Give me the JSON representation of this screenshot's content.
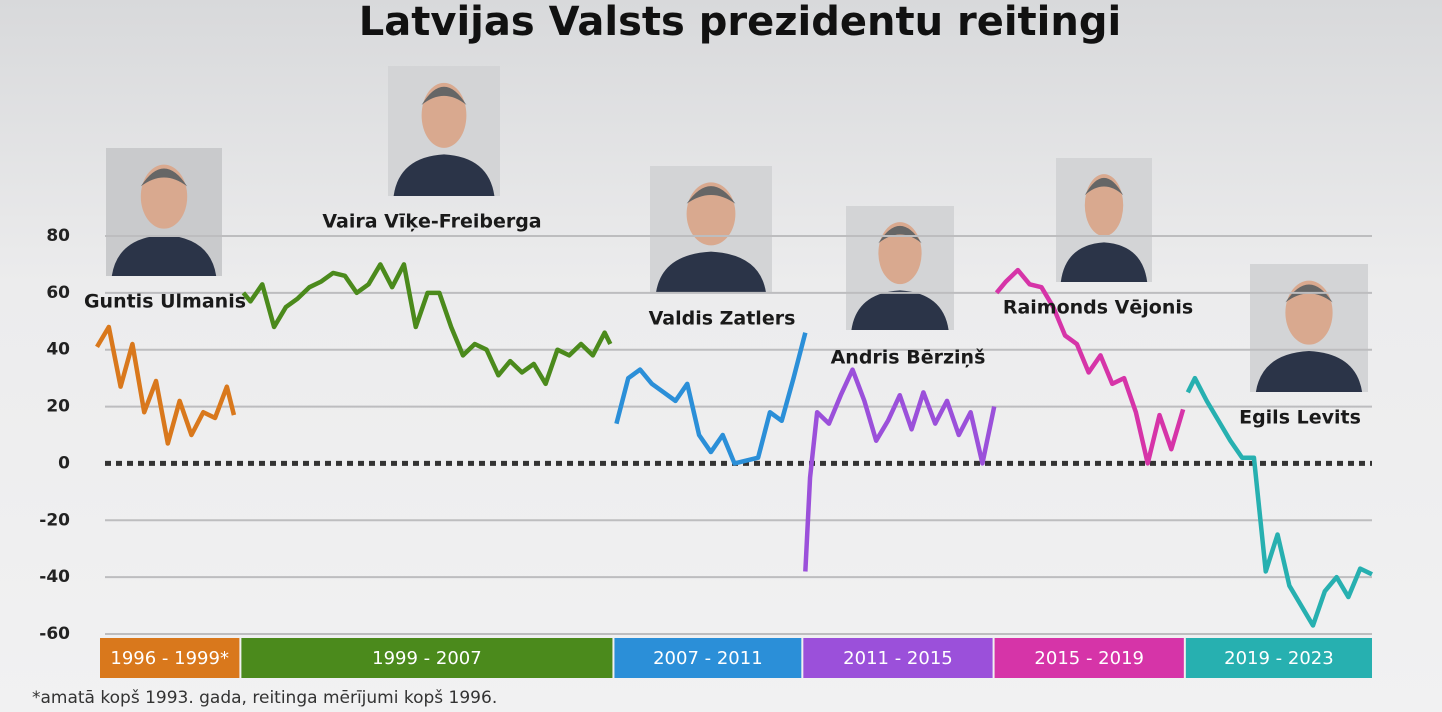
{
  "chart_data": {
    "type": "line",
    "title": "Latvijas Valsts prezidentu reitingi",
    "xlim": [
      1996,
      2023
    ],
    "ylim": [
      -60,
      80
    ],
    "yticks": [
      80,
      60,
      40,
      20,
      0,
      -20,
      -40,
      -60
    ],
    "grid": true,
    "series": [
      {
        "name": "Guntis Ulmanis",
        "color": "#d9781c",
        "x": [
          1996,
          1996.25,
          1996.5,
          1996.75,
          1997,
          1997.25,
          1997.5,
          1997.75,
          1998,
          1998.25,
          1998.5,
          1998.75,
          1998.9
        ],
        "values": [
          41,
          48,
          27,
          42,
          18,
          29,
          7,
          22,
          10,
          18,
          16,
          27,
          17
        ]
      },
      {
        "name": "Vaira Vīķe-Freiberga",
        "color": "#4b8a1c",
        "x": [
          1999.1,
          1999.25,
          1999.5,
          1999.75,
          2000,
          2000.25,
          2000.5,
          2000.75,
          2001,
          2001.25,
          2001.5,
          2001.75,
          2002,
          2002.25,
          2002.5,
          2002.75,
          2003,
          2003.25,
          2003.5,
          2003.75,
          2004,
          2004.25,
          2004.5,
          2004.75,
          2005,
          2005.25,
          2005.5,
          2005.75,
          2006,
          2006.25,
          2006.5,
          2006.75,
          2006.87
        ],
        "values": [
          60,
          57,
          63,
          48,
          55,
          58,
          62,
          64,
          67,
          66,
          60,
          63,
          70,
          62,
          70,
          48,
          60,
          60,
          48,
          38,
          42,
          40,
          31,
          36,
          32,
          35,
          28,
          40,
          38,
          42,
          38,
          46,
          42
        ]
      },
      {
        "name": "Valdis Zatlers",
        "color": "#2b8fd8",
        "x": [
          2007,
          2007.25,
          2007.5,
          2007.75,
          2008,
          2008.25,
          2008.5,
          2008.75,
          2009,
          2009.25,
          2009.5,
          2009.75,
          2010,
          2010.25,
          2010.5,
          2010.75,
          2011
        ],
        "values": [
          14,
          30,
          33,
          28,
          25,
          22,
          28,
          10,
          4,
          10,
          0,
          1,
          2,
          18,
          15,
          30,
          46
        ]
      },
      {
        "name": "Andris Bērziņš",
        "color": "#9b50da",
        "x": [
          2011,
          2011.1,
          2011.25,
          2011.5,
          2011.75,
          2012,
          2012.25,
          2012.5,
          2012.75,
          2013,
          2013.25,
          2013.5,
          2013.75,
          2014,
          2014.25,
          2014.5,
          2014.75,
          2015
        ],
        "values": [
          -38,
          -5,
          18,
          14,
          24,
          33,
          22,
          8,
          15,
          24,
          12,
          25,
          14,
          22,
          10,
          18,
          0,
          20
        ]
      },
      {
        "name": "Raimonds Vējonis",
        "color": "#d634a8",
        "x": [
          2015.05,
          2015.25,
          2015.5,
          2015.75,
          2016,
          2016.25,
          2016.5,
          2016.75,
          2017,
          2017.25,
          2017.5,
          2017.75,
          2018,
          2018.25,
          2018.5,
          2018.75,
          2019
        ],
        "values": [
          60,
          64,
          68,
          63,
          62,
          55,
          45,
          42,
          32,
          38,
          28,
          30,
          18,
          0,
          17,
          5,
          19
        ]
      },
      {
        "name": "Egils Levits",
        "color": "#27b0b0",
        "x": [
          2019.1,
          2019.25,
          2019.5,
          2019.75,
          2020,
          2020.25,
          2020.5,
          2020.75,
          2021,
          2021.25,
          2021.5,
          2021.75,
          2022,
          2022.25,
          2022.5,
          2022.75,
          2023
        ],
        "values": [
          25,
          30,
          22,
          15,
          8,
          2,
          2,
          -38,
          -25,
          -43,
          -50,
          -57,
          -45,
          -40,
          -47,
          -37,
          -39
        ]
      }
    ],
    "periods": [
      "1996 - 1999*",
      "1999 - 2007",
      "2007 - 2011",
      "2011 - 2015",
      "2015 - 2019",
      "2019 - 2023"
    ],
    "footnote": "*amatā kopš 1993. gada, reitinga mērījumi kopš 1996."
  }
}
